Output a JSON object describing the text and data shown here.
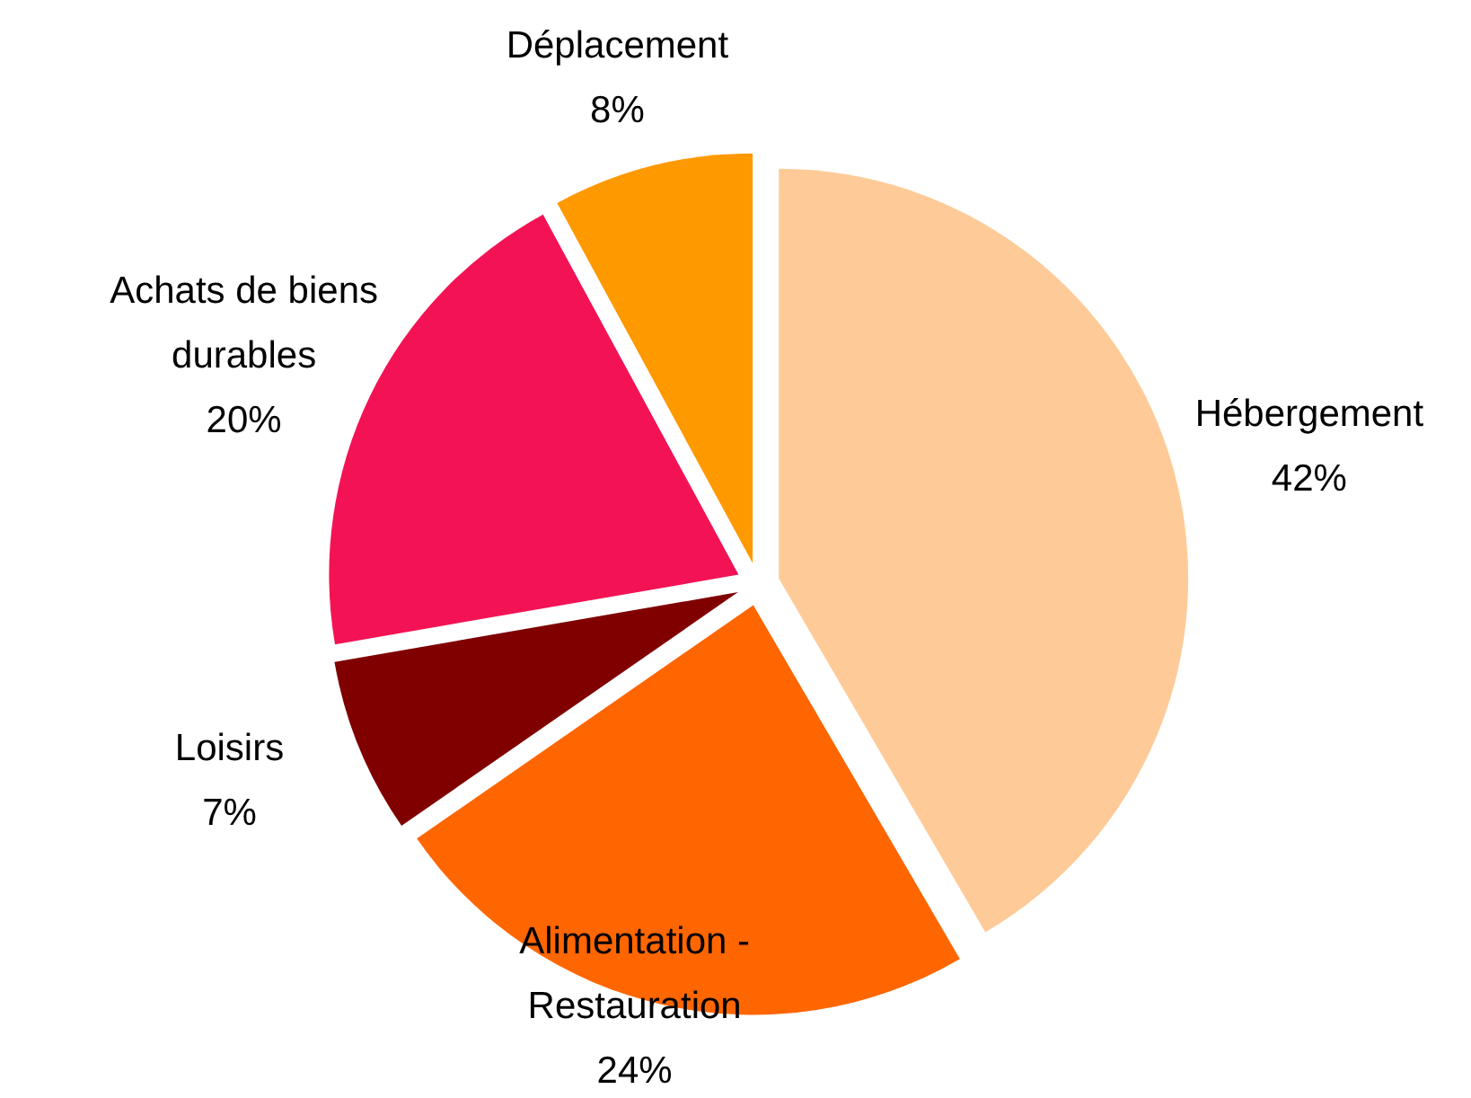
{
  "chart_data": {
    "type": "pie",
    "categories": [
      "Hébergement",
      "Alimentation - Restauration",
      "Loisirs",
      "Achats de biens durables",
      "Déplacement"
    ],
    "values": [
      42,
      24,
      7,
      20,
      8
    ],
    "colors": [
      "#fecb98",
      "#ff6600",
      "#800000",
      "#f31354",
      "#ff9900"
    ],
    "value_labels": [
      "42%",
      "24%",
      "7%",
      "20%",
      "8%"
    ]
  }
}
